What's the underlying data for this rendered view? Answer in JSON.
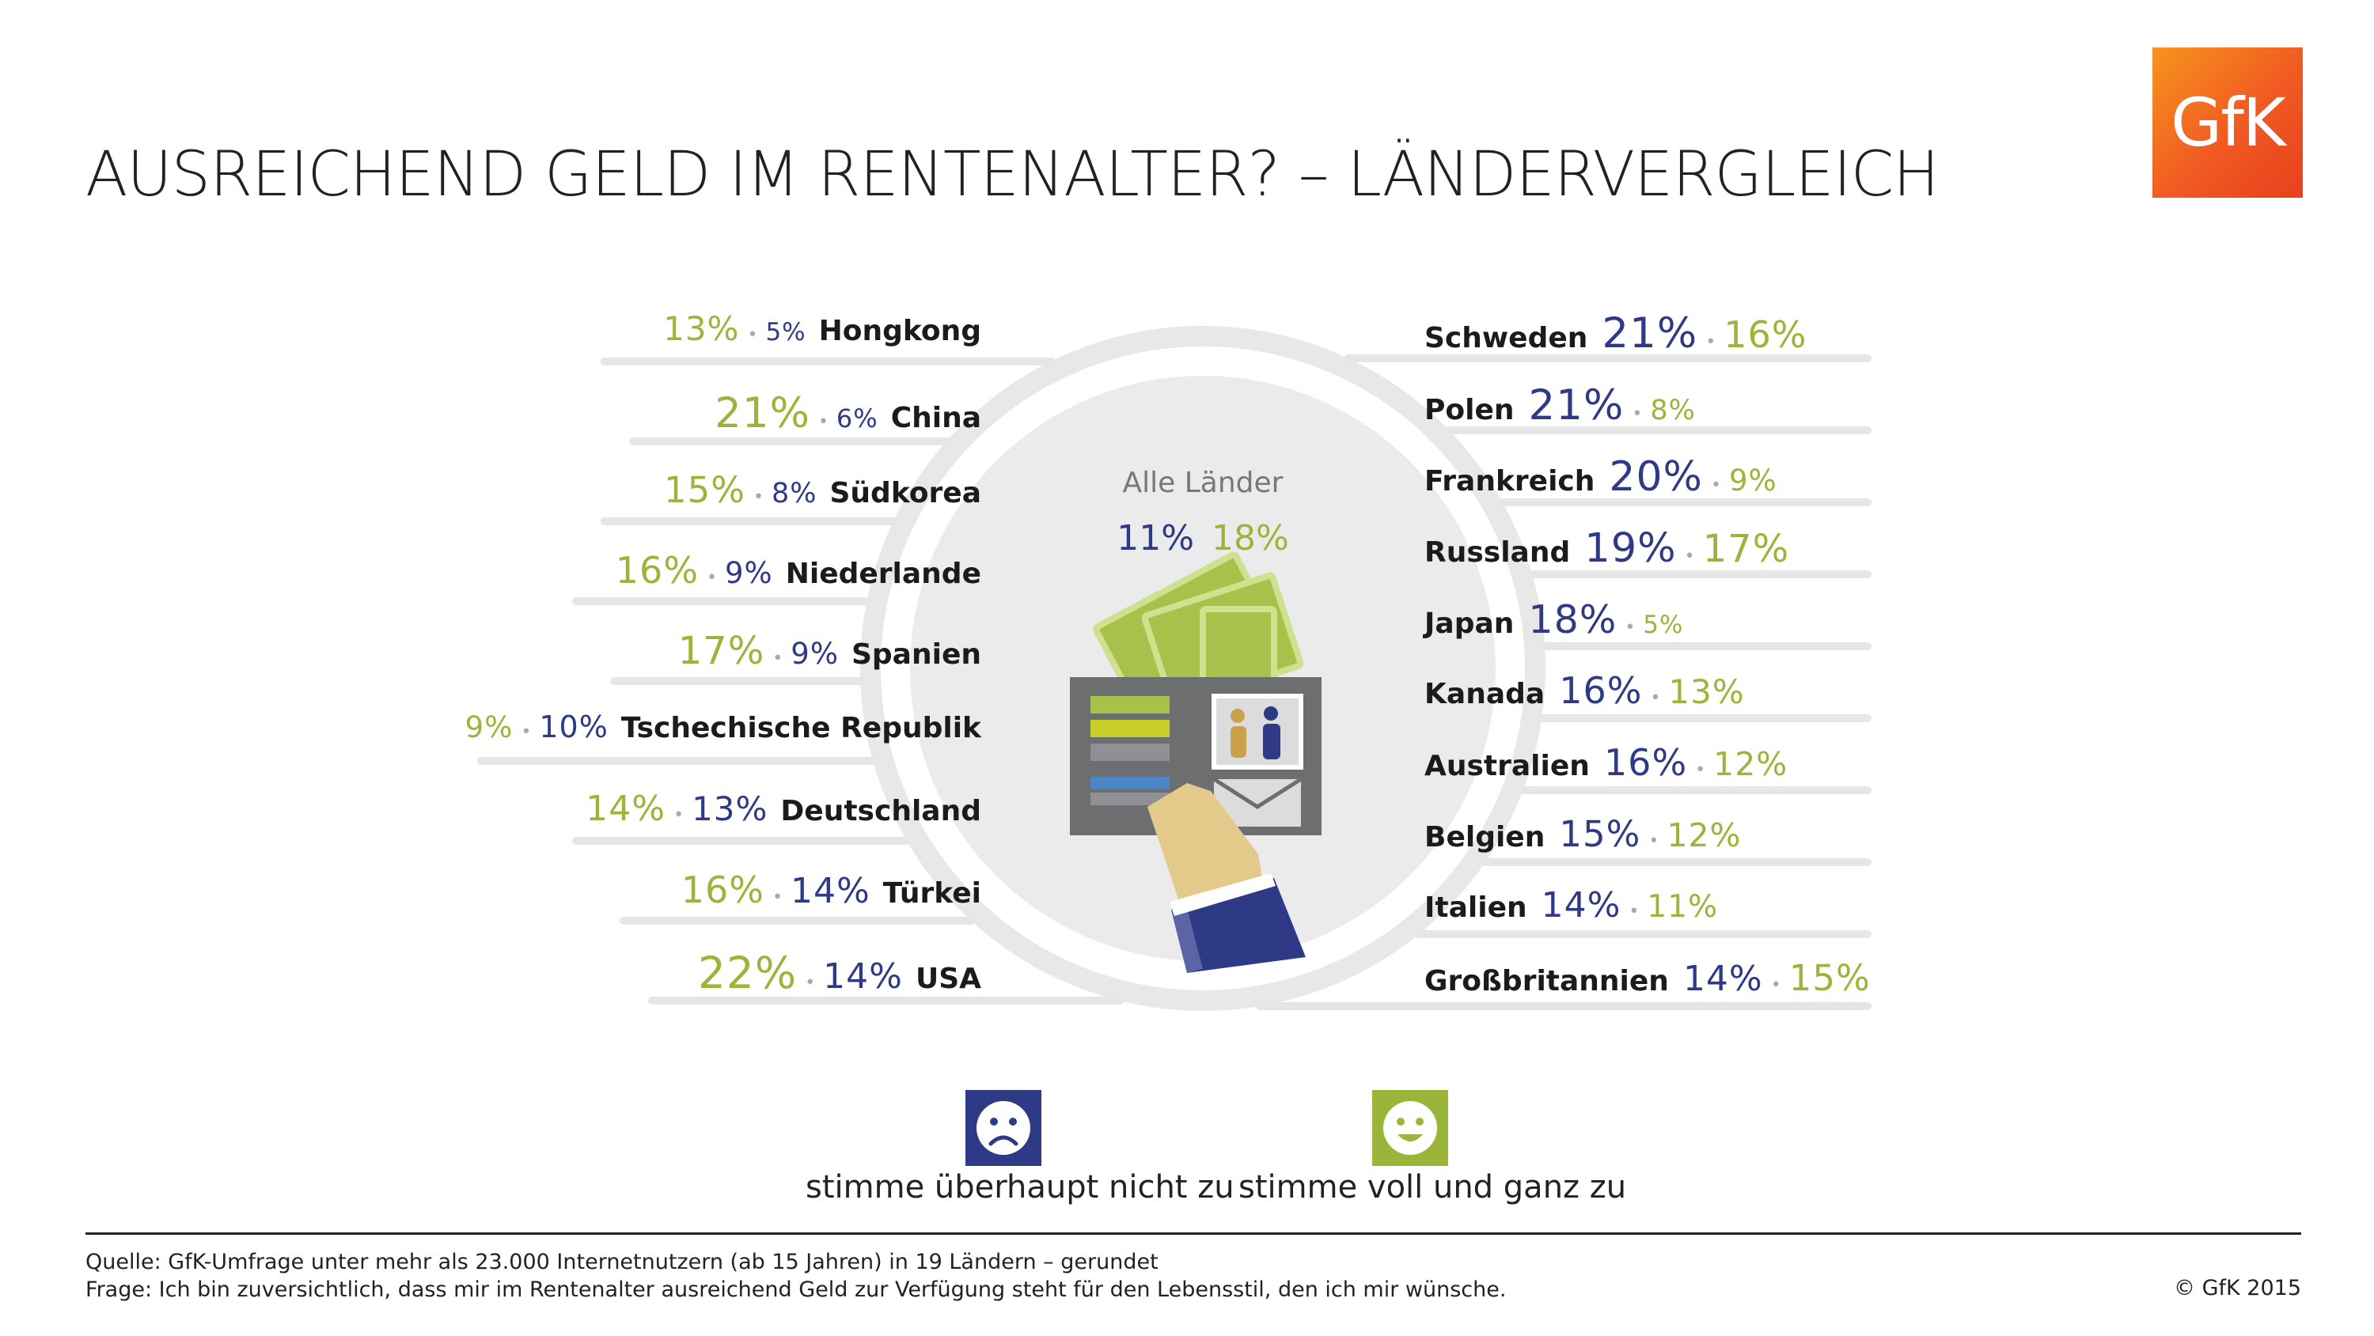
{
  "title": "AUSREICHEND GELD IM RENTENALTER? – LÄNDERVERGLEICH",
  "logo_text": "GfK",
  "colors": {
    "disagree": "#2e3a86",
    "agree": "#9bb53a",
    "ring": "#e6e6e6",
    "circle": "#ebebeb",
    "logo": "#f05a22"
  },
  "center": {
    "label": "Alle Länder",
    "disagree": "11%",
    "agree": "18%"
  },
  "legend": {
    "disagree_label": "stimme überhaupt nicht zu",
    "agree_label": "stimme voll und ganz zu",
    "disagree_icon": "sad-face-icon",
    "agree_icon": "happy-face-icon"
  },
  "footer": {
    "source": "Quelle: GfK-Umfrage unter mehr als 23.000 Internetnutzern (ab 15 Jahren) in 19 Ländern – gerundet",
    "question": "Frage: Ich bin zuversichtlich, dass mir im Rentenalter ausreichend Geld zur Verfügung steht  für den Lebensstil, den ich mir wünsche.",
    "copyright": "© GfK 2015"
  },
  "chart_data": {
    "type": "table",
    "unit": "%",
    "series": [
      {
        "name": "stimme überhaupt nicht zu",
        "color": "#2e3a86"
      },
      {
        "name": "stimme voll und ganz zu",
        "color": "#9bb53a"
      }
    ],
    "overall": {
      "label": "Alle Länder",
      "disagree": 11,
      "agree": 18
    },
    "left_column": [
      {
        "country": "Hongkong",
        "agree": 13,
        "disagree": 5
      },
      {
        "country": "China",
        "agree": 21,
        "disagree": 6
      },
      {
        "country": "Südkorea",
        "agree": 15,
        "disagree": 8
      },
      {
        "country": "Niederlande",
        "agree": 16,
        "disagree": 9
      },
      {
        "country": "Spanien",
        "agree": 17,
        "disagree": 9
      },
      {
        "country": "Tschechische Republik",
        "agree": 9,
        "disagree": 10
      },
      {
        "country": "Deutschland",
        "agree": 14,
        "disagree": 13
      },
      {
        "country": "Türkei",
        "agree": 16,
        "disagree": 14
      },
      {
        "country": "USA",
        "agree": 22,
        "disagree": 14
      }
    ],
    "right_column": [
      {
        "country": "Schweden",
        "disagree": 21,
        "agree": 16
      },
      {
        "country": "Polen",
        "disagree": 21,
        "agree": 8
      },
      {
        "country": "Frankreich",
        "disagree": 20,
        "agree": 9
      },
      {
        "country": "Russland",
        "disagree": 19,
        "agree": 17
      },
      {
        "country": "Japan",
        "disagree": 18,
        "agree": 5
      },
      {
        "country": "Kanada",
        "disagree": 16,
        "agree": 13
      },
      {
        "country": "Australien",
        "disagree": 16,
        "agree": 12
      },
      {
        "country": "Belgien",
        "disagree": 15,
        "agree": 12
      },
      {
        "country": "Italien",
        "disagree": 14,
        "agree": 11
      },
      {
        "country": "Großbritannien",
        "disagree": 14,
        "agree": 15
      }
    ]
  }
}
